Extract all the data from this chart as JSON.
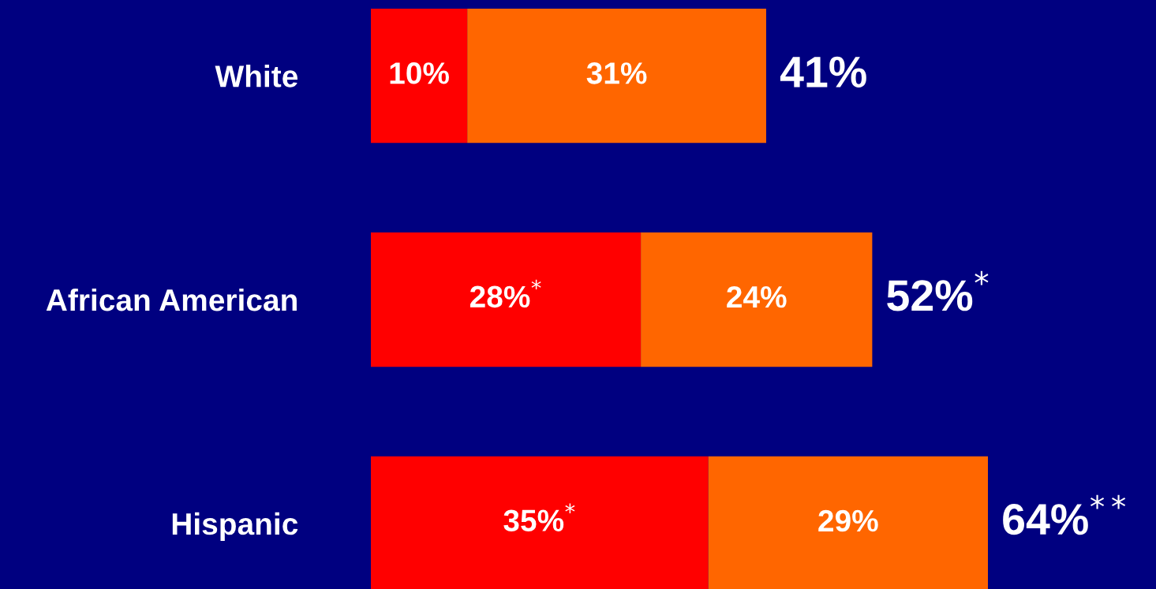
{
  "chart_data": {
    "type": "bar",
    "orientation": "horizontal",
    "stacked": true,
    "tick_labels": "y",
    "grid": false,
    "legend": false,
    "categories": [
      "White",
      "African American",
      "Hispanic"
    ],
    "series": [
      {
        "color": "#ff0000",
        "values": [
          10,
          28,
          35
        ],
        "value_labels": [
          "10%",
          "28%$^{*}$",
          "35%$^{*}$"
        ]
      },
      {
        "color": "#ff6600",
        "values": [
          31,
          24,
          29
        ],
        "value_labels": [
          "31%",
          "24%",
          "29%"
        ]
      }
    ],
    "totals": [
      "41%",
      "52%$^{*}$",
      "64%$^{**}$"
    ]
  }
}
